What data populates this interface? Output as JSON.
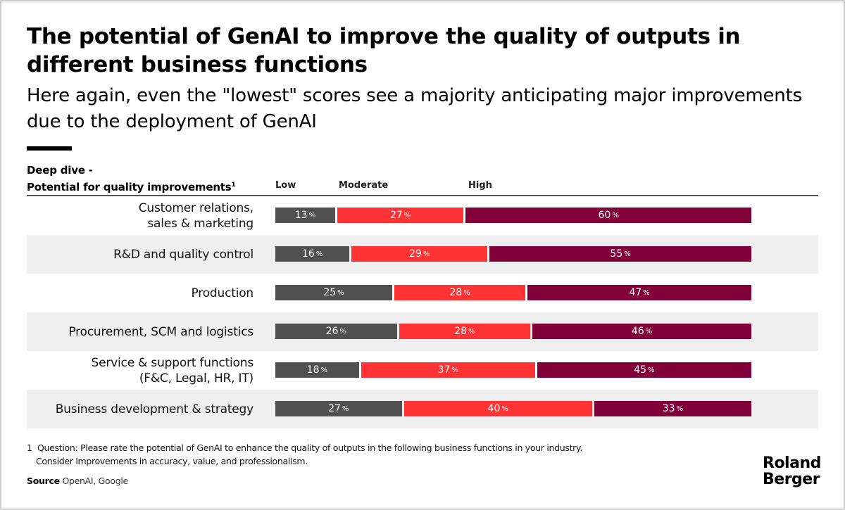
{
  "header": {
    "title": "The potential of GenAI to improve the quality of outputs in different business functions",
    "subtitle": "Here again, even the \"lowest\" scores see a majority anticipating major improvements due to the deployment of GenAI"
  },
  "chart_data": {
    "type": "bar",
    "stacked": true,
    "orientation": "horizontal",
    "percent_stacked": true,
    "title_line1": "Deep dive -",
    "title_line2": "Potential for quality improvements",
    "title_footnote_marker": "1",
    "legend": [
      {
        "name": "Low",
        "color": "#505050"
      },
      {
        "name": "Moderate",
        "color": "#ff3333"
      },
      {
        "name": "High",
        "color": "#820039"
      }
    ],
    "legend_placement": "top",
    "categories": [
      "Customer relations,\nsales & marketing",
      "R&D and quality control",
      "Production",
      "Procurement, SCM and logistics",
      "Service & support functions\n(F&C, Legal, HR, IT)",
      "Business development & strategy"
    ],
    "series": [
      {
        "name": "Low",
        "values": [
          13,
          16,
          25,
          26,
          18,
          27
        ]
      },
      {
        "name": "Moderate",
        "values": [
          27,
          29,
          28,
          28,
          37,
          40
        ]
      },
      {
        "name": "High",
        "values": [
          60,
          55,
          47,
          46,
          45,
          33
        ]
      }
    ],
    "value_suffix": "%",
    "xlim": [
      0,
      100
    ],
    "grid": false
  },
  "footer": {
    "footnote_marker": "1",
    "footnote_line1": "Question: Please rate the potential of GenAI to enhance the quality of outputs in the following business functions in your industry.",
    "footnote_line2": "Consider improvements in accuracy, value, and professionalism.",
    "source_label": "Source",
    "source_text": "OpenAI, Google",
    "logo_line1": "Roland",
    "logo_line2": "Berger"
  }
}
